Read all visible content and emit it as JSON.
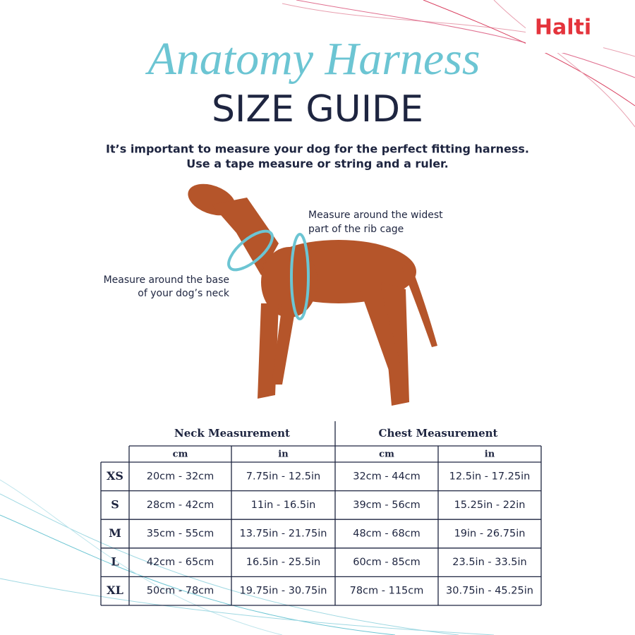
{
  "brand": "Halti",
  "header": {
    "title": "Anatomy Harness",
    "subtitle": "SIZE GUIDE",
    "intro": [
      "It’s important to measure your dog for the perfect fitting harness.",
      "Use a tape measure or string and a ruler."
    ]
  },
  "annotations": {
    "chest": [
      "Measure around the widest",
      "part of the rib cage"
    ],
    "neck": [
      "Measure around the base",
      "of your dog’s neck"
    ]
  },
  "table": {
    "groups": [
      "Neck Measurement",
      "Chest Measurement"
    ],
    "units": [
      "cm",
      "in",
      "cm",
      "in"
    ],
    "rows": [
      {
        "size": "XS",
        "cells": [
          "20cm - 32cm",
          "7.75in - 12.5in",
          "32cm - 44cm",
          "12.5in - 17.25in"
        ]
      },
      {
        "size": "S",
        "cells": [
          "28cm - 42cm",
          "11in - 16.5in",
          "39cm - 56cm",
          "15.25in - 22in"
        ]
      },
      {
        "size": "M",
        "cells": [
          "35cm - 55cm",
          "13.75in - 21.75in",
          "48cm - 68cm",
          "19in - 26.75in"
        ]
      },
      {
        "size": "L",
        "cells": [
          "42cm - 65cm",
          "16.5in - 25.5in",
          "60cm - 85cm",
          "23.5in - 33.5in"
        ]
      },
      {
        "size": "XL",
        "cells": [
          "50cm - 78cm",
          "19.75in - 30.75in",
          "78cm - 115cm",
          "30.75in - 45.25in"
        ]
      }
    ]
  }
}
